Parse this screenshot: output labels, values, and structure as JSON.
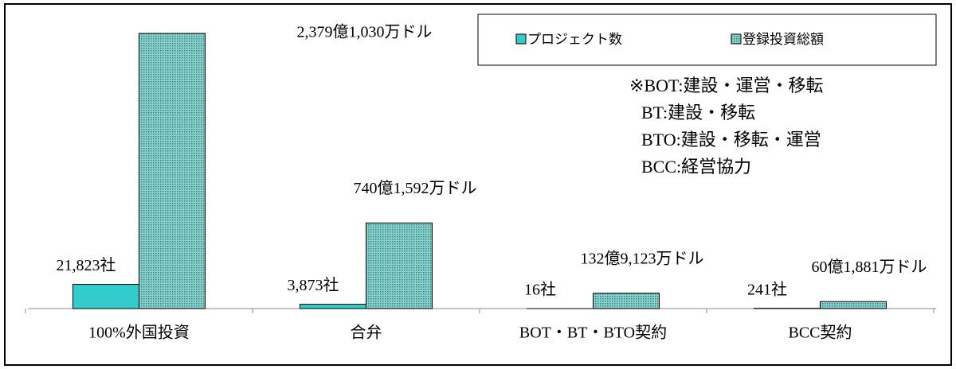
{
  "chart_data": {
    "type": "bar",
    "categories": [
      "100%外国投資",
      "合弁",
      "BOT・BT・BTO契約",
      "BCC契約"
    ],
    "series": [
      {
        "name": "プロジェクト数",
        "color": "#33cccc",
        "values": [
          21823,
          3873,
          16,
          241
        ],
        "value_labels": [
          "21,823社",
          "3,873社",
          "16社",
          "241社"
        ]
      },
      {
        "name": "登録投資総額",
        "color": "#5fb3b0",
        "axis": "y2",
        "values": [
          2379.103,
          740.1592,
          132.9123,
          60.1881
        ],
        "value_labels": [
          "2,379億1,030万ドル",
          "740億1,592万ドル",
          "132億9,123万ドル",
          "60億1,881万ドル"
        ]
      }
    ],
    "ylim": [
      0,
      250000
    ],
    "y2lim": [
      0,
      2400
    ],
    "annotation": [
      "※BOT:建設・運営・移転",
      "BT:建設・移転",
      "BTO:建設・移転・運営",
      "BCC:経営協力"
    ]
  }
}
